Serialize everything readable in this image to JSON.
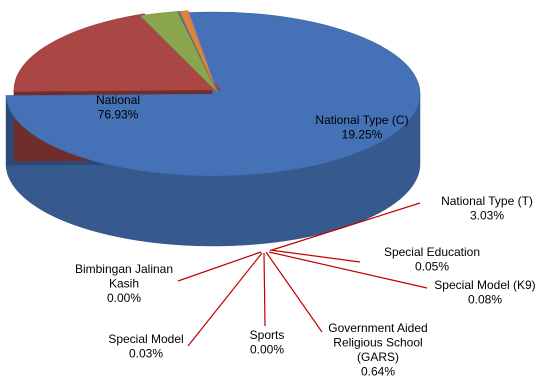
{
  "chart_data": {
    "type": "pie",
    "title": "",
    "slices": [
      {
        "name": "National",
        "value": 76.93,
        "label": "76.93%",
        "color": "#4572b6"
      },
      {
        "name": "National Type (C)",
        "value": 19.25,
        "label": "19.25%",
        "color": "#aa4643"
      },
      {
        "name": "National Type (T)",
        "value": 3.03,
        "label": "3.03%",
        "color": "#89a54e"
      },
      {
        "name": "Special Education",
        "value": 0.05,
        "label": "0.05%",
        "color": "#71588f"
      },
      {
        "name": "Special Model (K9)",
        "value": 0.08,
        "label": "0.08%",
        "color": "#4198af"
      },
      {
        "name": "Government Aided Religious School (GARS)",
        "value": 0.64,
        "label": "0.64%",
        "color": "#db843d"
      },
      {
        "name": "Sports",
        "value": 0.0,
        "label": "0.00%",
        "color": "#93a9cf"
      },
      {
        "name": "Special Model",
        "value": 0.03,
        "label": "0.03%",
        "color": "#d19392"
      },
      {
        "name": "Bimbingan Jalinan Kasih",
        "value": 0.0,
        "label": "0.00%",
        "color": "#b9cd96"
      }
    ],
    "leader_line_color": "#c00000",
    "style": "3d-exploded"
  }
}
